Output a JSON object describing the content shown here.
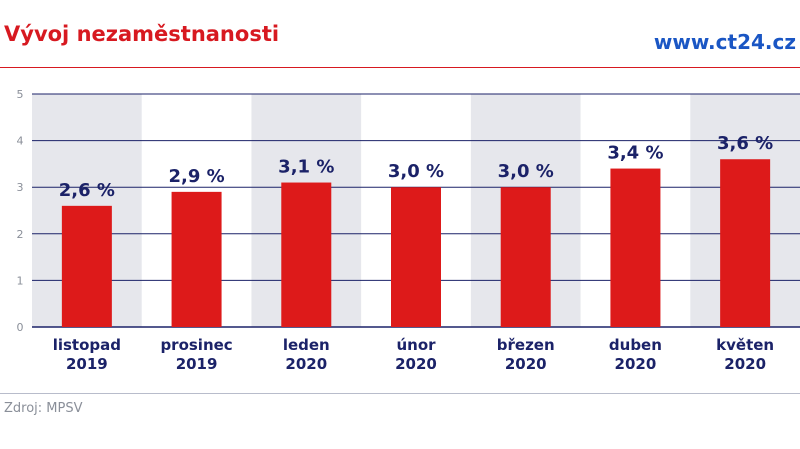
{
  "header": {
    "title": "Vývoj nezaměstnanosti",
    "url": "www.ct24.cz"
  },
  "footer": {
    "source": "Zdroj: MPSV"
  },
  "colors": {
    "bar": "#dd1a1a",
    "band": "#e6e7ec",
    "axis": "#1b2268",
    "title": "#d71920",
    "url": "#1a56c4"
  },
  "chart_data": {
    "type": "bar",
    "categories": [
      [
        "listopad",
        "2019"
      ],
      [
        "prosinec",
        "2019"
      ],
      [
        "leden",
        "2020"
      ],
      [
        "únor",
        "2020"
      ],
      [
        "březen",
        "2020"
      ],
      [
        "duben",
        "2020"
      ],
      [
        "květen",
        "2020"
      ]
    ],
    "values": [
      2.6,
      2.9,
      3.1,
      3.0,
      3.0,
      3.4,
      3.6
    ],
    "data_labels": [
      "2,6 %",
      "2,9 %",
      "3,1 %",
      "3,0 %",
      "3,0 %",
      "3,4 %",
      "3,6 %"
    ],
    "yticks": [
      0,
      1,
      2,
      3,
      4,
      5
    ],
    "ylim": [
      0,
      5
    ],
    "grid": true
  }
}
